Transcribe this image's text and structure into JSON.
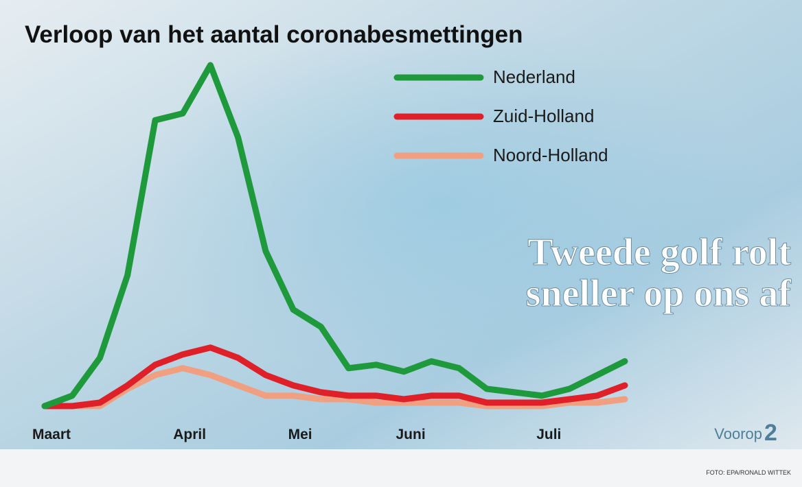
{
  "chart_data": {
    "type": "line",
    "title": "Verloop van het aantal coronabesmettingen",
    "categories": [
      "Maart",
      null,
      null,
      null,
      null,
      "April",
      null,
      null,
      null,
      "Mei",
      null,
      null,
      null,
      "Juni",
      null,
      null,
      null,
      null,
      "Juli",
      null,
      null,
      null
    ],
    "series": [
      {
        "name": "Nederland",
        "color": "#1e9a3c",
        "values": [
          0,
          3,
          14,
          38,
          83,
          85,
          99,
          78,
          45,
          28,
          23,
          11,
          12,
          10,
          13,
          11,
          5,
          4,
          3,
          5,
          9,
          13
        ]
      },
      {
        "name": "Zuid-Holland",
        "color": "#e02028",
        "values": [
          0,
          0,
          1,
          6,
          12,
          15,
          17,
          14,
          9,
          6,
          4,
          3,
          3,
          2,
          3,
          3,
          1,
          1,
          1,
          2,
          3,
          6
        ]
      },
      {
        "name": "Noord-Holland",
        "color": "#f0a080",
        "values": [
          0,
          0,
          0,
          5,
          9,
          11,
          9,
          6,
          3,
          3,
          2,
          2,
          1,
          1,
          1,
          1,
          0,
          0,
          0,
          1,
          1,
          2
        ]
      }
    ],
    "annotations": [
      "Tweede golf rolt",
      "sneller op ons af"
    ],
    "brand": {
      "name": "Voorop",
      "number": "2"
    },
    "credit": "FOTO: EPA/RONALD WITTEK"
  }
}
